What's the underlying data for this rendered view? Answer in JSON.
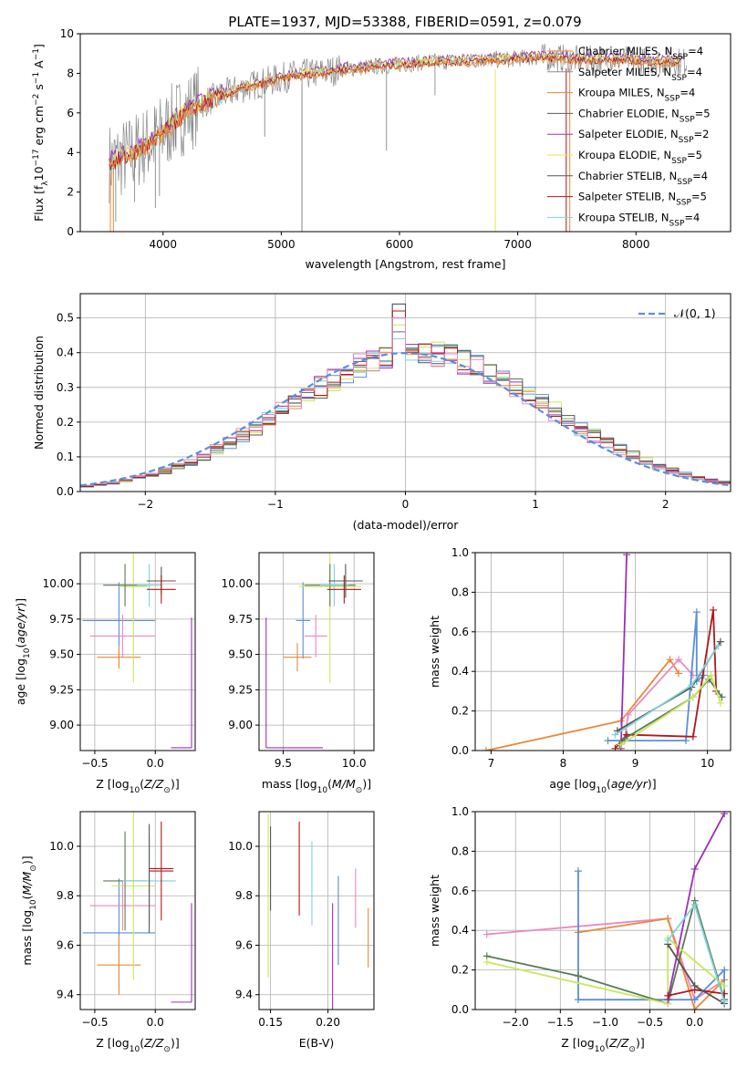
{
  "title": "PLATE=1937, MJD=53388, FIBERID=0591, z=0.079",
  "colors": {
    "Chabrier MILES": "#e8893a",
    "Salpeter MILES": "#8a8a8a",
    "Kroupa MILES": "#d98a2a",
    "Chabrier ELODIE": "#5a5a5a",
    "Salpeter ELODIE": "#9b30b5",
    "Kroupa ELODIE": "#e6e64d",
    "Chabrier STELIB": "#555555",
    "Salpeter STELIB": "#b01818",
    "Kroupa STELIB": "#7fd3d8",
    "blue": "#5b8fd6",
    "pink": "#e88ac0",
    "lime": "#c8e85a",
    "green": "#5a7a5a"
  },
  "chart_data": [
    {
      "id": "spectrum",
      "type": "line",
      "title": "PLATE=1937, MJD=53388, FIBERID=0591, z=0.079",
      "xlabel": "wavelength [Angstrom, rest frame]",
      "ylabel": "Flux [fλ10⁻¹⁷ erg cm⁻² s⁻¹ A⁻¹]",
      "xlim": [
        3300,
        8800
      ],
      "ylim": [
        0,
        10
      ],
      "xticks": [
        4000,
        5000,
        6000,
        7000,
        8000
      ],
      "yticks": [
        0,
        2,
        4,
        6,
        8,
        10
      ],
      "grid": false,
      "legend_position": "right",
      "legend": [
        {
          "base": "Chabrier MILES, N",
          "sub": "SSP",
          "tail": "=4"
        },
        {
          "base": "Salpeter MILES, N",
          "sub": "SSP",
          "tail": "=4"
        },
        {
          "base": "Kroupa MILES, N",
          "sub": "SSP",
          "tail": "=4"
        },
        {
          "base": "Chabrier ELODIE, N",
          "sub": "SSP",
          "tail": "=5"
        },
        {
          "base": "Salpeter ELODIE, N",
          "sub": "SSP",
          "tail": "=2"
        },
        {
          "base": "Kroupa ELODIE, N",
          "sub": "SSP",
          "tail": "=5"
        },
        {
          "base": "Chabrier STELIB, N",
          "sub": "SSP",
          "tail": "=4"
        },
        {
          "base": "Salpeter STELIB, N",
          "sub": "SSP",
          "tail": "=5"
        },
        {
          "base": "Kroupa STELIB, N",
          "sub": "SSP",
          "tail": "=4"
        }
      ],
      "continuum": {
        "x": [
          3550,
          3700,
          3800,
          3900,
          4000,
          4100,
          4200,
          4300,
          4500,
          4700,
          4900,
          5100,
          5300,
          5500,
          5700,
          5900,
          6100,
          6300,
          6500,
          6700,
          6900,
          7100,
          7300,
          7500,
          7700,
          7900,
          8100,
          8300,
          8400
        ],
        "y": [
          3.5,
          3.8,
          4.2,
          4.5,
          5.0,
          5.6,
          6.0,
          6.4,
          6.9,
          7.3,
          7.6,
          7.9,
          8.0,
          8.2,
          8.3,
          8.4,
          8.5,
          8.6,
          8.6,
          8.7,
          8.7,
          8.8,
          8.8,
          8.7,
          8.7,
          8.7,
          8.6,
          8.6,
          8.6
        ]
      }
    },
    {
      "id": "residuals",
      "type": "line",
      "xlabel": "(data-model)/error",
      "ylabel": "Normed distribution",
      "xlim": [
        -2.5,
        2.5
      ],
      "ylim": [
        0,
        0.57
      ],
      "xticks": [
        -2,
        -1,
        0,
        1,
        2
      ],
      "yticks": [
        0.0,
        0.1,
        0.2,
        0.3,
        0.4,
        0.5
      ],
      "grid": true,
      "legend_position": "top-right",
      "legend": [
        "𝒩(0, 1)"
      ],
      "bin_width": 0.1,
      "spike_bin_center": -0.05,
      "spike_values": [
        0.54,
        0.52,
        0.5,
        0.48,
        0.46,
        0.44
      ]
    },
    {
      "id": "age-vs-Z",
      "type": "scatter",
      "xlabel": "Z [log₁₀(Z/Z⊙)]",
      "ylabel": "age  [log₁₀(age/yr)]",
      "xlim": [
        -0.62,
        0.33
      ],
      "ylim": [
        8.82,
        10.22
      ],
      "xticks": [
        -0.5,
        0.0
      ],
      "yticks": [
        9.0,
        9.25,
        9.5,
        9.75,
        10.0
      ],
      "grid": true,
      "points": [
        {
          "color": "blue",
          "x": -0.3,
          "xerr": 0.3,
          "y": 9.74,
          "yerr": 0.27
        },
        {
          "color": "Chabrier MILES",
          "x": -0.3,
          "xerr": 0.18,
          "y": 9.48,
          "yerr": 0.08
        },
        {
          "color": "pink",
          "x": -0.27,
          "xerr": 0.27,
          "y": 9.63,
          "yerr": 0.15
        },
        {
          "color": "lime",
          "x": -0.18,
          "xerr": 0.12,
          "y": 9.98,
          "yerr": 0.68
        },
        {
          "color": "green",
          "x": -0.25,
          "xerr": 0.18,
          "y": 9.99,
          "yerr": 0.15
        },
        {
          "color": "Kroupa STELIB",
          "x": -0.05,
          "xerr": 0.1,
          "y": 9.99,
          "yerr": 0.15
        },
        {
          "color": "Chabrier STELIB",
          "x": 0.05,
          "xerr": 0.12,
          "y": 10.02,
          "yerr": 0.1
        },
        {
          "color": "Salpeter STELIB",
          "x": 0.05,
          "xerr": 0.12,
          "y": 9.96,
          "yerr": 0.1
        },
        {
          "color": "Salpeter ELODIE",
          "x": 0.3,
          "xerr": 0.0,
          "y": 9.3,
          "yerr": 0.46
        }
      ],
      "extra_segments": [
        {
          "color": "Salpeter ELODIE",
          "x": [
            0.13,
            0.3
          ],
          "y": [
            8.84,
            8.84
          ]
        }
      ]
    },
    {
      "id": "age-vs-mass",
      "type": "scatter",
      "xlabel": "mass [log₁₀(M/M⊙)]",
      "ylabel": "",
      "xlim": [
        9.33,
        10.14
      ],
      "ylim": [
        8.82,
        10.22
      ],
      "xticks": [
        9.5,
        10.0
      ],
      "yticks": [
        9.0,
        9.25,
        9.5,
        9.75,
        10.0
      ],
      "grid": true,
      "points": [
        {
          "color": "blue",
          "x": 9.64,
          "xerr": 0.05,
          "y": 9.74,
          "yerr": 0.27
        },
        {
          "color": "Chabrier MILES",
          "x": 9.6,
          "xerr": 0.1,
          "y": 9.48,
          "yerr": 0.1
        },
        {
          "color": "pink",
          "x": 9.73,
          "xerr": 0.08,
          "y": 9.63,
          "yerr": 0.15
        },
        {
          "color": "lime",
          "x": 9.83,
          "xerr": 0.22,
          "y": 9.98,
          "yerr": 0.68
        },
        {
          "color": "green",
          "x": 9.83,
          "xerr": 0.18,
          "y": 9.99,
          "yerr": 0.15
        },
        {
          "color": "Kroupa STELIB",
          "x": 9.86,
          "xerr": 0.1,
          "y": 9.99,
          "yerr": 0.15
        },
        {
          "color": "Chabrier STELIB",
          "x": 9.94,
          "xerr": 0.12,
          "y": 10.02,
          "yerr": 0.12
        },
        {
          "color": "Salpeter STELIB",
          "x": 9.93,
          "xerr": 0.12,
          "y": 9.96,
          "yerr": 0.1
        },
        {
          "color": "Salpeter ELODIE",
          "x": 9.38,
          "xerr": 0.0,
          "y": 9.3,
          "yerr": 0.46
        }
      ],
      "extra_segments": [
        {
          "color": "Salpeter ELODIE",
          "x": [
            9.38,
            9.78
          ],
          "y": [
            8.84,
            8.84
          ]
        }
      ]
    },
    {
      "id": "weight-vs-age",
      "type": "line",
      "xlabel": "age  [log₁₀(age/yr)]",
      "ylabel": "mass weight",
      "xlim": [
        6.78,
        10.32
      ],
      "ylim": [
        0.0,
        1.0
      ],
      "xticks": [
        7,
        8,
        9,
        10
      ],
      "yticks": [
        0.0,
        0.2,
        0.4,
        0.6,
        0.8,
        1.0
      ],
      "grid": true,
      "series": [
        {
          "color": "Chabrier MILES",
          "x": [
            6.93,
            8.8,
            9.48,
            9.6
          ],
          "y": [
            0.0,
            0.15,
            0.46,
            0.39
          ]
        },
        {
          "color": "pink",
          "x": [
            8.85,
            8.9,
            9.6,
            9.8
          ],
          "y": [
            0.05,
            0.18,
            0.46,
            0.38
          ]
        },
        {
          "color": "blue",
          "x": [
            8.62,
            9.7,
            9.85,
            9.85,
            9.95
          ],
          "y": [
            0.05,
            0.05,
            0.7,
            0.35,
            0.38
          ]
        },
        {
          "color": "Salpeter ELODIE",
          "x": [
            8.8,
            8.88
          ],
          "y": [
            0.01,
            0.99
          ]
        },
        {
          "color": "Salpeter STELIB",
          "x": [
            8.72,
            8.88,
            9.8,
            10.08,
            10.12
          ],
          "y": [
            0.01,
            0.08,
            0.07,
            0.71,
            0.3
          ]
        },
        {
          "color": "green",
          "x": [
            8.78,
            8.85,
            9.8,
            10.02,
            10.2
          ],
          "y": [
            0.03,
            0.06,
            0.27,
            0.36,
            0.27
          ]
        },
        {
          "color": "lime",
          "x": [
            8.8,
            9.8,
            10.05,
            10.18
          ],
          "y": [
            0.03,
            0.27,
            0.38,
            0.24
          ]
        },
        {
          "color": "Chabrier STELIB",
          "x": [
            8.75,
            9.78,
            10.18
          ],
          "y": [
            0.1,
            0.32,
            0.55
          ]
        },
        {
          "color": "Kroupa STELIB",
          "x": [
            8.72,
            9.78,
            10.15
          ],
          "y": [
            0.08,
            0.33,
            0.53
          ]
        }
      ]
    },
    {
      "id": "mass-vs-Z",
      "type": "scatter",
      "xlabel": "Z [log₁₀(Z/Z⊙)]",
      "ylabel": "mass [log₁₀(M/M⊙)]",
      "xlim": [
        -0.62,
        0.33
      ],
      "ylim": [
        9.34,
        10.14
      ],
      "xticks": [
        -0.5,
        0.0
      ],
      "yticks": [
        9.4,
        9.6,
        9.8,
        10.0
      ],
      "grid": true,
      "points": [
        {
          "color": "blue",
          "x": -0.3,
          "xerr": 0.3,
          "y": 9.65,
          "yerr": 0.22
        },
        {
          "color": "Chabrier MILES",
          "x": -0.3,
          "xerr": 0.18,
          "y": 9.52,
          "yerr": 0.12
        },
        {
          "color": "pink",
          "x": -0.27,
          "xerr": 0.27,
          "y": 9.76,
          "yerr": 0.1
        },
        {
          "color": "lime",
          "x": -0.18,
          "xerr": 0.18,
          "y": 9.84,
          "yerr": 0.38
        },
        {
          "color": "green",
          "x": -0.25,
          "xerr": 0.18,
          "y": 9.86,
          "yerr": 0.2
        },
        {
          "color": "Kroupa STELIB",
          "x": -0.05,
          "xerr": 0.22,
          "y": 9.86,
          "yerr": 0.18
        },
        {
          "color": "Chabrier STELIB",
          "x": -0.05,
          "xerr": 0.0,
          "y": 9.87,
          "yerr": 0.22
        },
        {
          "color": "Salpeter STELIB",
          "x": 0.05,
          "xerr": 0.1,
          "y": 9.9,
          "yerr": 0.2
        },
        {
          "color": "Salpeter ELODIE",
          "x": 0.3,
          "xerr": 0.0,
          "y": 9.57,
          "yerr": 0.2
        }
      ],
      "extra_segments": [
        {
          "color": "Salpeter ELODIE",
          "x": [
            0.13,
            0.3
          ],
          "y": [
            9.37,
            9.37
          ]
        },
        {
          "color": "Salpeter STELIB",
          "x": [
            -0.05,
            0.15
          ],
          "y": [
            9.91,
            9.91
          ]
        }
      ]
    },
    {
      "id": "mass-vs-ebv",
      "type": "scatter",
      "xlabel": "E(B-V)",
      "ylabel": "",
      "xlim": [
        0.14,
        0.24
      ],
      "ylim": [
        9.34,
        10.14
      ],
      "xticks": [
        0.15,
        0.2
      ],
      "yticks": [
        9.4,
        9.6,
        9.8,
        10.0
      ],
      "grid": true,
      "points": [
        {
          "color": "lime",
          "x": 0.148,
          "xerr": 0,
          "y": 9.8,
          "yerr": 0.33
        },
        {
          "color": "Chabrier STELIB",
          "x": 0.15,
          "xerr": 0,
          "y": 9.91,
          "yerr": 0.17
        },
        {
          "color": "Salpeter STELIB",
          "x": 0.175,
          "xerr": 0,
          "y": 9.91,
          "yerr": 0.19
        },
        {
          "color": "Kroupa STELIB",
          "x": 0.186,
          "xerr": 0,
          "y": 9.85,
          "yerr": 0.17
        },
        {
          "color": "Salpeter ELODIE",
          "x": 0.204,
          "xerr": 0,
          "y": 9.55,
          "yerr": 0.22
        },
        {
          "color": "blue",
          "x": 0.209,
          "xerr": 0,
          "y": 9.7,
          "yerr": 0.18
        },
        {
          "color": "pink",
          "x": 0.224,
          "xerr": 0,
          "y": 9.79,
          "yerr": 0.12
        },
        {
          "color": "Chabrier MILES",
          "x": 0.235,
          "xerr": 0,
          "y": 9.63,
          "yerr": 0.12
        }
      ]
    },
    {
      "id": "weight-vs-Z",
      "type": "line",
      "xlabel": "Z [log₁₀(Z/Z⊙)]",
      "ylabel": "mass weight",
      "xlim": [
        -2.45,
        0.4
      ],
      "ylim": [
        0.0,
        1.0
      ],
      "xticks": [
        -2.0,
        -1.5,
        -1.0,
        -0.5,
        0.0
      ],
      "yticks": [
        0.0,
        0.2,
        0.4,
        0.6,
        0.8,
        1.0
      ],
      "grid": true,
      "series": [
        {
          "color": "pink",
          "x": [
            -2.32,
            -0.3,
            0.0,
            0.33
          ],
          "y": [
            0.38,
            0.46,
            0.05,
            0.15
          ]
        },
        {
          "color": "Chabrier MILES",
          "x": [
            -1.3,
            -0.3,
            0.0,
            0.33
          ],
          "y": [
            0.39,
            0.46,
            0.0,
            0.15
          ]
        },
        {
          "color": "blue",
          "x": [
            -1.3,
            -1.3,
            0.0,
            0.33,
            0.33
          ],
          "y": [
            0.7,
            0.05,
            0.05,
            0.2,
            0.05
          ]
        },
        {
          "color": "green",
          "x": [
            -2.32,
            -1.3,
            -0.3,
            0.0,
            0.33
          ],
          "y": [
            0.27,
            0.17,
            0.03,
            0.55,
            0.05
          ]
        },
        {
          "color": "lime",
          "x": [
            -2.32,
            -0.3,
            -0.3,
            0.33
          ],
          "y": [
            0.24,
            0.03,
            0.36,
            0.12
          ]
        },
        {
          "color": "Salpeter ELODIE",
          "x": [
            -0.3,
            0.0,
            0.33
          ],
          "y": [
            0.05,
            0.71,
            0.99
          ]
        },
        {
          "color": "Salpeter STELIB",
          "x": [
            -0.3,
            0.0,
            0.33
          ],
          "y": [
            0.07,
            0.1,
            0.08
          ]
        },
        {
          "color": "Chabrier STELIB",
          "x": [
            -0.3,
            0.0,
            0.33
          ],
          "y": [
            0.33,
            0.12,
            0.03
          ]
        },
        {
          "color": "Kroupa STELIB",
          "x": [
            -0.3,
            0.0,
            0.33
          ],
          "y": [
            0.35,
            0.53,
            0.04
          ]
        }
      ]
    }
  ]
}
